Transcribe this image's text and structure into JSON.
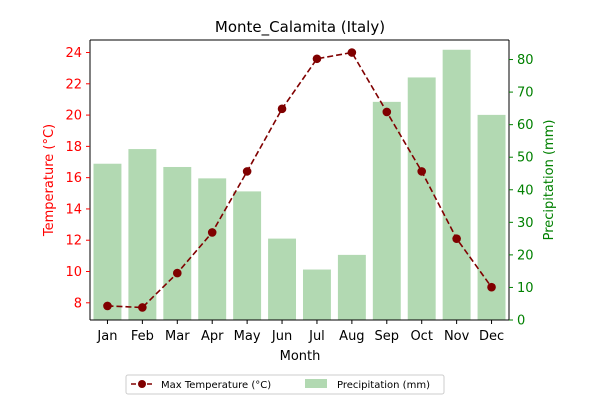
{
  "chart_data": {
    "type": "bar+line",
    "title": "Monte_Calamita (Italy)",
    "xlabel": "Month",
    "categories": [
      "Jan",
      "Feb",
      "Mar",
      "Apr",
      "May",
      "Jun",
      "Jul",
      "Aug",
      "Sep",
      "Oct",
      "Nov",
      "Dec"
    ],
    "left_axis": {
      "label": "Temperature (°C)",
      "color": "#ff0000",
      "ylim": [
        6.9,
        24.8
      ],
      "ticks": [
        8,
        10,
        12,
        14,
        16,
        18,
        20,
        22,
        24
      ]
    },
    "right_axis": {
      "label": "Precipitation (mm)",
      "color": "#008000",
      "ylim": [
        0,
        86
      ],
      "ticks": [
        0,
        10,
        20,
        30,
        40,
        50,
        60,
        70,
        80
      ]
    },
    "series": [
      {
        "name": "Max Temperature (°C)",
        "kind": "line",
        "axis": "left",
        "color": "#800000",
        "style": "dashed",
        "marker": "circle",
        "values": [
          7.8,
          7.7,
          9.9,
          12.5,
          16.4,
          20.4,
          23.6,
          24.0,
          20.2,
          16.4,
          12.1,
          9.0
        ]
      },
      {
        "name": "Precipitation (mm)",
        "kind": "bar",
        "axis": "right",
        "color": "#b2d9b2",
        "values": [
          48,
          52.5,
          47,
          43.5,
          39.5,
          25,
          15.5,
          20,
          67,
          74.5,
          83,
          63
        ]
      }
    ],
    "legend": {
      "placement": "bottom-center",
      "columns": 2
    },
    "grid": false
  }
}
